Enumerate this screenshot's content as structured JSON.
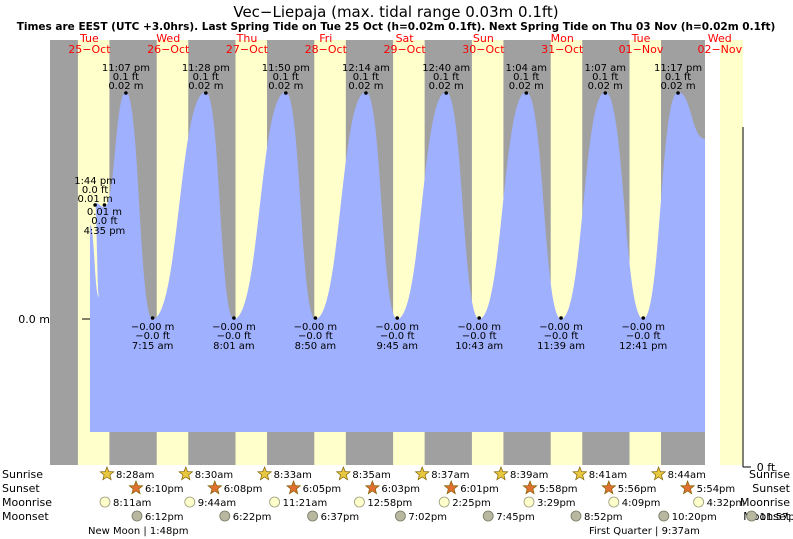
{
  "chart_data": {
    "type": "area",
    "title": "Vec−Liepaja (max. tidal range 0.03m 0.1ft)",
    "subtitle": "Times are EEST (UTC +3.0hrs). Last Spring Tide on Tue 25 Oct (h=0.02m 0.1ft). Next Spring Tide on Thu 03 Nov (h=0.02m 0.1ft)",
    "y_label_left": "0.0 m",
    "y_label_right": "0 ft",
    "colors": {
      "tide_fill": "#9fb0ff",
      "night": "#a0a0a0",
      "day": "#ffffcc",
      "weekend_date": "#ff0000",
      "sunrise_star": "#e8c840",
      "sunset_star": "#e07030",
      "moonrise": "#ffffcc",
      "moonset": "#b8b8a0"
    },
    "days": [
      {
        "dow": "Tue",
        "date": "25−Oct"
      },
      {
        "dow": "Wed",
        "date": "26−Oct"
      },
      {
        "dow": "Thu",
        "date": "27−Oct"
      },
      {
        "dow": "Fri",
        "date": "28−Oct"
      },
      {
        "dow": "Sat",
        "date": "29−Oct"
      },
      {
        "dow": "Sun",
        "date": "30−Oct"
      },
      {
        "dow": "Mon",
        "date": "31−Oct"
      },
      {
        "dow": "Tue",
        "date": "01−Nov"
      },
      {
        "dow": "Wed",
        "date": "02−Nov"
      }
    ],
    "high_tides": [
      {
        "day": 0,
        "time": "1:44 pm",
        "ft": "0.0 ft",
        "m": "0.01 m",
        "hour": 13.73
      },
      {
        "day": 0,
        "time": "11:07 pm",
        "ft": "0.1 ft",
        "m": "0.02 m",
        "hour": 23.12
      },
      {
        "day": 1,
        "time": "11:28 pm",
        "ft": "0.1 ft",
        "m": "0.02 m",
        "hour": 23.47
      },
      {
        "day": 2,
        "time": "11:50 pm",
        "ft": "0.1 ft",
        "m": "0.02 m",
        "hour": 23.83
      },
      {
        "day": 4,
        "time": "12:14 am",
        "ft": "0.1 ft",
        "m": "0.02 m",
        "hour": 0.23
      },
      {
        "day": 5,
        "time": "12:40 am",
        "ft": "0.1 ft",
        "m": "0.02 m",
        "hour": 0.67
      },
      {
        "day": 6,
        "time": "1:04 am",
        "ft": "0.1 ft",
        "m": "0.02 m",
        "hour": 1.07
      },
      {
        "day": 7,
        "time": "1:07 am",
        "ft": "0.1 ft",
        "m": "0.02 m",
        "hour": 1.12
      },
      {
        "day": 7,
        "time": "11:17 pm",
        "ft": "0.1 ft",
        "m": "0.02 m",
        "hour": 23.28
      }
    ],
    "low_tides": [
      {
        "day": 0,
        "time": "4:35 pm",
        "ft": "0.0 ft",
        "m": "0.01 m",
        "hour": 16.58
      },
      {
        "day": 1,
        "time": "7:15 am",
        "ft": "−0.0 ft",
        "m": "−0.00 m",
        "hour": 7.25
      },
      {
        "day": 2,
        "time": "8:01 am",
        "ft": "−0.0 ft",
        "m": "−0.00 m",
        "hour": 8.02
      },
      {
        "day": 3,
        "time": "8:50 am",
        "ft": "−0.0 ft",
        "m": "−0.00 m",
        "hour": 8.83
      },
      {
        "day": 4,
        "time": "9:45 am",
        "ft": "−0.0 ft",
        "m": "−0.00 m",
        "hour": 9.75
      },
      {
        "day": 5,
        "time": "10:43 am",
        "ft": "−0.0 ft",
        "m": "−0.00 m",
        "hour": 10.72
      },
      {
        "day": 6,
        "time": "11:39 am",
        "ft": "−0.0 ft",
        "m": "−0.00 m",
        "hour": 11.65
      },
      {
        "day": 7,
        "time": "12:41 pm",
        "ft": "−0.0 ft",
        "m": "−0.00 m",
        "hour": 12.68
      }
    ],
    "row_labels": [
      "Sunrise",
      "Sunset",
      "Moonrise",
      "Moonset"
    ],
    "sunrise": [
      "8:28am",
      "8:30am",
      "8:33am",
      "8:35am",
      "8:37am",
      "8:39am",
      "8:41am",
      "8:44am"
    ],
    "sunset": [
      "6:10pm",
      "6:08pm",
      "6:05pm",
      "6:03pm",
      "6:01pm",
      "5:58pm",
      "5:56pm",
      "5:54pm"
    ],
    "moonrise": [
      "8:11am",
      "9:44am",
      "11:21am",
      "12:58pm",
      "2:25pm",
      "3:29pm",
      "4:09pm",
      "4:32pm"
    ],
    "moonset": [
      "6:12pm",
      "6:22pm",
      "6:37pm",
      "7:02pm",
      "7:45pm",
      "8:52pm",
      "10:20pm",
      "11:57pm"
    ],
    "moon_phases": [
      {
        "label": "New Moon",
        "time": "1:48pm"
      },
      {
        "label": "First Quarter",
        "time": "9:37am"
      }
    ]
  }
}
